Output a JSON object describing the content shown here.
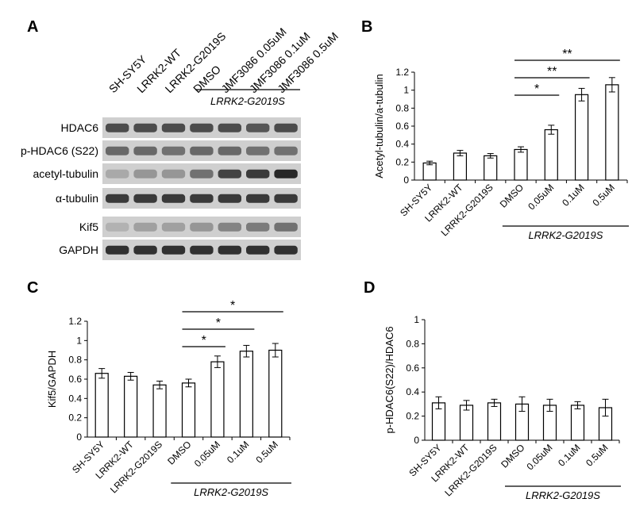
{
  "panels": {
    "a": "A",
    "b": "B",
    "c": "C",
    "d": "D"
  },
  "blot": {
    "lanes": [
      "SH-SY5Y",
      "LRRK2-WT",
      "LRRK2-G2019S",
      "DMSO",
      "JMF3086 0.05uM",
      "JMF3086 0.1uM",
      "JMF3086 0.5uM"
    ],
    "group_label": "LRRK2-G2019S",
    "rows": [
      {
        "label": "HDAC6",
        "intensity": [
          0.75,
          0.75,
          0.75,
          0.75,
          0.75,
          0.7,
          0.75
        ]
      },
      {
        "label": "p-HDAC6 (S22)",
        "intensity": [
          0.6,
          0.6,
          0.55,
          0.6,
          0.6,
          0.55,
          0.55
        ]
      },
      {
        "label": "acetyl-tubulin",
        "intensity": [
          0.25,
          0.35,
          0.35,
          0.55,
          0.8,
          0.85,
          0.95
        ]
      },
      {
        "label": "α-tubulin",
        "intensity": [
          0.85,
          0.85,
          0.85,
          0.85,
          0.85,
          0.85,
          0.85
        ]
      },
      {
        "label": "Kif5",
        "intensity": [
          0.2,
          0.3,
          0.3,
          0.35,
          0.45,
          0.5,
          0.55
        ]
      },
      {
        "label": "GAPDH",
        "intensity": [
          0.9,
          0.9,
          0.9,
          0.9,
          0.9,
          0.9,
          0.9
        ]
      }
    ]
  },
  "chart_data": [
    {
      "id": "b",
      "type": "bar",
      "categories": [
        "SH-SY5Y",
        "LRRK2-WT",
        "LRRK2-G2019S",
        "DMSO",
        "0.05uM",
        "0.1uM",
        "0.5uM"
      ],
      "values": [
        0.19,
        0.3,
        0.27,
        0.34,
        0.56,
        0.95,
        1.06
      ],
      "errors": [
        0.02,
        0.03,
        0.025,
        0.03,
        0.05,
        0.07,
        0.08
      ],
      "ylabel": "Acetyl-tubulin/a-tubulin",
      "ylim": [
        0,
        1.2
      ],
      "yticks": [
        "0",
        "0.2",
        "0.4",
        "0.6",
        "0.8",
        "1",
        "1.2"
      ],
      "group_label": "LRRK2-G2019S",
      "significance": [
        {
          "from": 3,
          "to": 4,
          "label": "*"
        },
        {
          "from": 3,
          "to": 5,
          "label": "**"
        },
        {
          "from": 3,
          "to": 6,
          "label": "**"
        }
      ]
    },
    {
      "id": "c",
      "type": "bar",
      "categories": [
        "SH-SY5Y",
        "LRRK2-WT",
        "LRRK2-G2019S",
        "DMSO",
        "0.05uM",
        "0.1uM",
        "0.5uM"
      ],
      "values": [
        0.66,
        0.63,
        0.54,
        0.56,
        0.78,
        0.89,
        0.9
      ],
      "errors": [
        0.05,
        0.04,
        0.04,
        0.04,
        0.06,
        0.06,
        0.07
      ],
      "ylabel": "Kif5/GAPDH",
      "ylim": [
        0,
        1.2
      ],
      "yticks": [
        "0",
        "0.2",
        "0.4",
        "0.6",
        "0.8",
        "1",
        "1.2"
      ],
      "group_label": "LRRK2-G2019S",
      "significance": [
        {
          "from": 3,
          "to": 4,
          "label": "*"
        },
        {
          "from": 3,
          "to": 5,
          "label": "*"
        },
        {
          "from": 3,
          "to": 6,
          "label": "*"
        }
      ]
    },
    {
      "id": "d",
      "type": "bar",
      "categories": [
        "SH-SY5Y",
        "LRRK2-WT",
        "LRRK2-G2019S",
        "DMSO",
        "0.05uM",
        "0.1uM",
        "0.5uM"
      ],
      "values": [
        0.31,
        0.29,
        0.31,
        0.3,
        0.29,
        0.29,
        0.27
      ],
      "errors": [
        0.05,
        0.04,
        0.03,
        0.06,
        0.05,
        0.03,
        0.07
      ],
      "ylabel": "p-HDAC6(S22)/HDAC6",
      "ylim": [
        0,
        1
      ],
      "yticks": [
        "0",
        "0.2",
        "0.4",
        "0.6",
        "0.8",
        "1"
      ],
      "group_label": "LRRK2-G2019S",
      "significance": []
    }
  ]
}
